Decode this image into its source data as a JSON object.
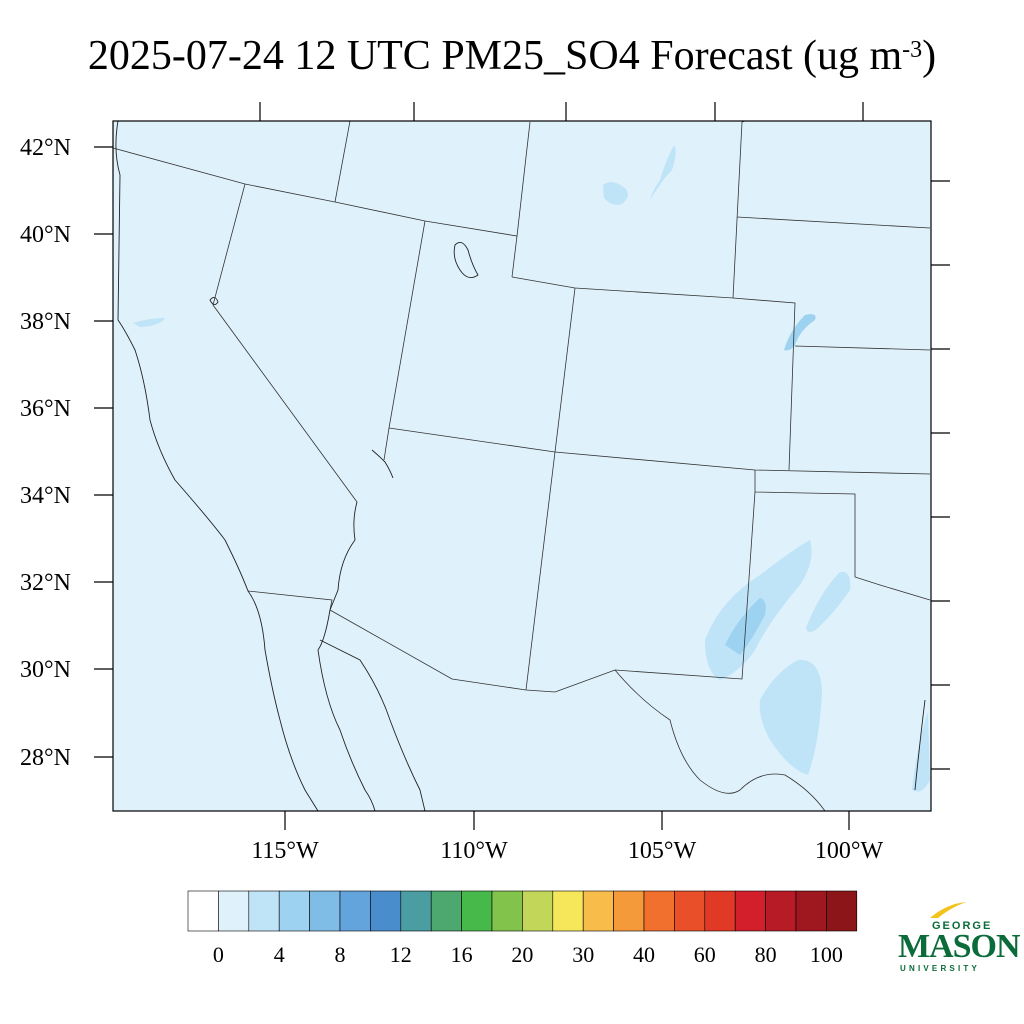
{
  "title": {
    "main": "2025-07-24 12 UTC PM25_SO4 Forecast (ug m",
    "superscript": "-3",
    "close": ")"
  },
  "map": {
    "lat_labels": [
      "42°N",
      "40°N",
      "38°N",
      "36°N",
      "34°N",
      "32°N",
      "30°N",
      "28°N"
    ],
    "lon_labels": [
      "115°W",
      "110°W",
      "105°W",
      "100°W"
    ],
    "background_color": "#dff1fb",
    "feature_color_light": "#bfe3f7",
    "feature_color_mid": "#9dd3f1"
  },
  "colorbar": {
    "labels": [
      "0",
      "4",
      "8",
      "12",
      "16",
      "20",
      "30",
      "40",
      "60",
      "80",
      "100"
    ],
    "colors": [
      "#ffffff",
      "#dff1fb",
      "#bfe3f7",
      "#9dd3f1",
      "#7fbce6",
      "#62a4db",
      "#4a8dcc",
      "#4a9ea1",
      "#4ca86e",
      "#47b84a",
      "#82c34b",
      "#c2d75a",
      "#f6e75a",
      "#f7bc4a",
      "#f59a3a",
      "#f2702e",
      "#e9502a",
      "#e03a26",
      "#d21f2b",
      "#b71b25",
      "#a0181f",
      "#8c1519"
    ]
  },
  "logo": {
    "line1": "GEORGE",
    "line2": "MASON",
    "line3": "UNIVERSITY",
    "color": "#0b6b3a",
    "accent": "#f2c31c"
  }
}
